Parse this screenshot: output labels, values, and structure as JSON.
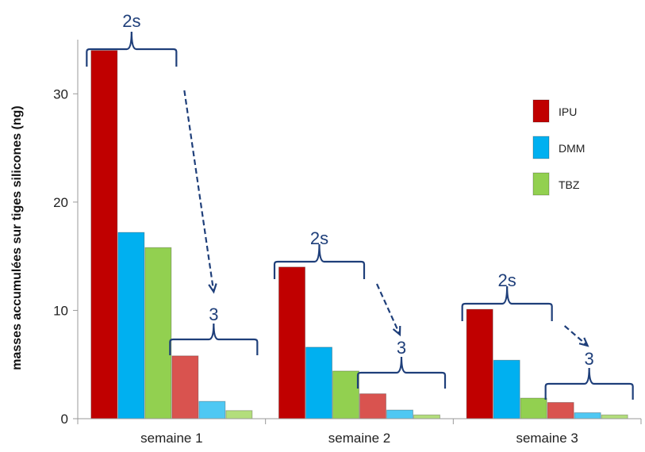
{
  "chart_data": {
    "type": "bar",
    "ylabel": "masses accumulées sur tiges silicones (ng)",
    "xlabel": "",
    "ylim": [
      0,
      35
    ],
    "yticks": [
      0,
      10,
      20,
      30
    ],
    "grid": false,
    "legend_position": "right",
    "categories": [
      "semaine 1",
      "semaine 2",
      "semaine 3"
    ],
    "series": [
      {
        "name": "IPU",
        "color": "#c00000",
        "values": [
          34,
          14,
          10.1
        ]
      },
      {
        "name": "DMM",
        "color": "#00b0f0",
        "values": [
          17.2,
          6.6,
          5.4
        ]
      },
      {
        "name": "TBZ",
        "color": "#92d050",
        "values": [
          15.8,
          4.4,
          1.9
        ]
      },
      {
        "name": "",
        "color": "#d9534f",
        "values": [
          5.8,
          2.3,
          1.5
        ]
      },
      {
        "name": "",
        "color": "#4fc8f3",
        "values": [
          1.6,
          0.8,
          0.55
        ]
      },
      {
        "name": "",
        "color": "#b3de7c",
        "values": [
          0.75,
          0.35,
          0.35
        ]
      }
    ],
    "annotations": {
      "group_a_label": "2s",
      "group_b_label": "3"
    }
  }
}
